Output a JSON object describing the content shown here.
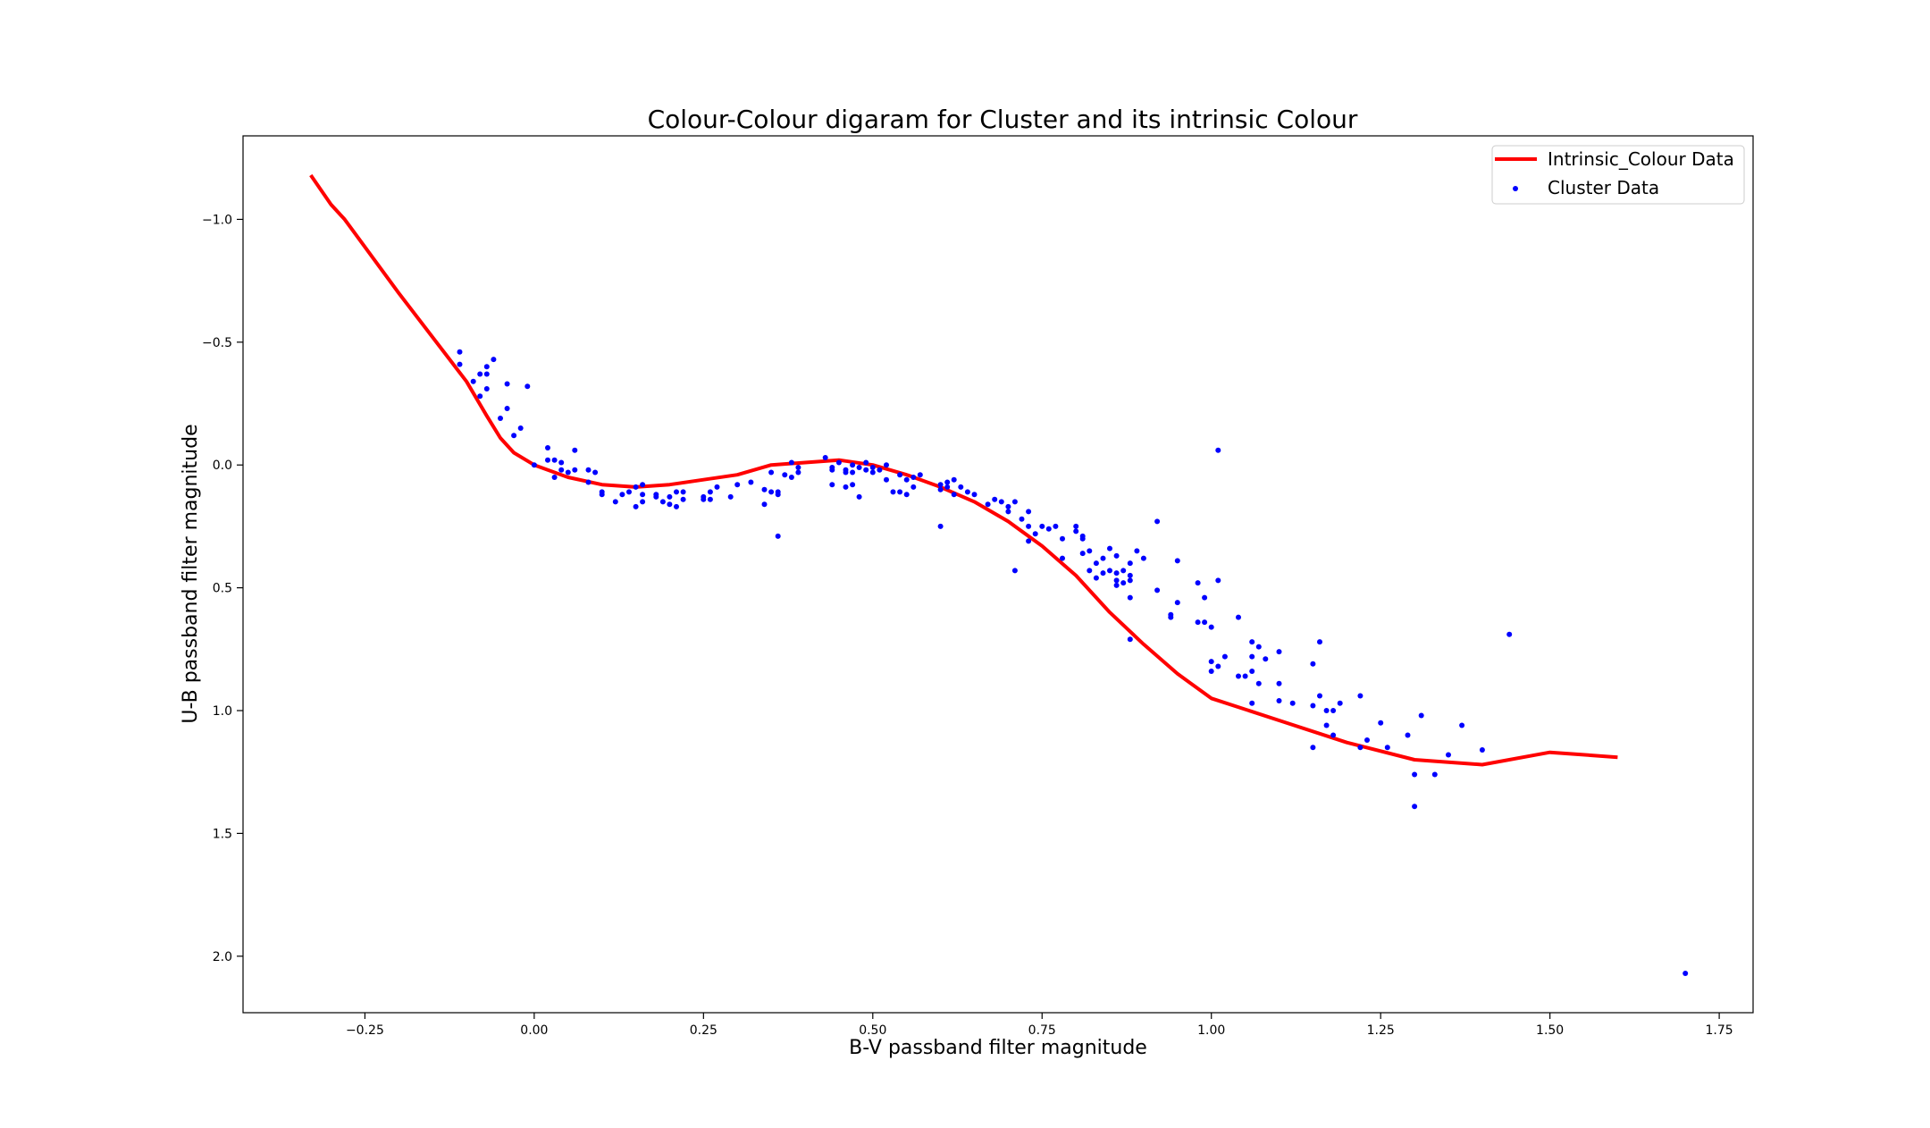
{
  "chart_data": {
    "type": "scatter",
    "title": "Colour-Colour digaram for Cluster and its intrinsic Colour",
    "xlabel": "B-V passband filter magnitude",
    "ylabel": "U-B passband filter magnitude",
    "xlim": [
      -0.43,
      1.8
    ],
    "ylim": [
      2.23,
      -1.34
    ],
    "y_inverted": true,
    "x_ticks": [
      -0.25,
      0.0,
      0.25,
      0.5,
      0.75,
      1.0,
      1.25,
      1.5,
      1.75
    ],
    "x_tick_labels": [
      "−0.25",
      "0.00",
      "0.25",
      "0.50",
      "0.75",
      "1.00",
      "1.25",
      "1.50",
      "1.75"
    ],
    "y_ticks": [
      -1.0,
      -0.5,
      0.0,
      0.5,
      1.0,
      1.5,
      2.0
    ],
    "y_tick_labels": [
      "−1.0",
      "−0.5",
      "0.0",
      "0.5",
      "1.0",
      "1.5",
      "2.0"
    ],
    "grid": false,
    "legend_position": "top-right",
    "series": [
      {
        "name": "Intrinsic_Colour Data",
        "kind": "line",
        "color": "#ff0000",
        "points": [
          [
            -0.33,
            -1.18
          ],
          [
            -0.3,
            -1.06
          ],
          [
            -0.28,
            -1.0
          ],
          [
            -0.2,
            -0.7
          ],
          [
            -0.1,
            -0.34
          ],
          [
            -0.07,
            -0.2
          ],
          [
            -0.05,
            -0.11
          ],
          [
            -0.03,
            -0.05
          ],
          [
            0.0,
            0.0
          ],
          [
            0.05,
            0.05
          ],
          [
            0.1,
            0.08
          ],
          [
            0.15,
            0.09
          ],
          [
            0.2,
            0.08
          ],
          [
            0.25,
            0.06
          ],
          [
            0.3,
            0.04
          ],
          [
            0.35,
            0.0
          ],
          [
            0.4,
            -0.01
          ],
          [
            0.45,
            -0.02
          ],
          [
            0.5,
            0.0
          ],
          [
            0.55,
            0.04
          ],
          [
            0.6,
            0.09
          ],
          [
            0.65,
            0.15
          ],
          [
            0.7,
            0.23
          ],
          [
            0.75,
            0.33
          ],
          [
            0.8,
            0.45
          ],
          [
            0.85,
            0.6
          ],
          [
            0.9,
            0.73
          ],
          [
            0.95,
            0.85
          ],
          [
            1.0,
            0.95
          ],
          [
            1.1,
            1.04
          ],
          [
            1.2,
            1.13
          ],
          [
            1.3,
            1.2
          ],
          [
            1.4,
            1.22
          ],
          [
            1.5,
            1.17
          ],
          [
            1.6,
            1.19
          ]
        ]
      },
      {
        "name": "Cluster Data",
        "kind": "scatter",
        "color": "#0000ff",
        "points": [
          [
            -0.11,
            -0.46
          ],
          [
            -0.11,
            -0.41
          ],
          [
            -0.09,
            -0.34
          ],
          [
            -0.08,
            -0.37
          ],
          [
            -0.08,
            -0.28
          ],
          [
            -0.07,
            -0.4
          ],
          [
            -0.07,
            -0.37
          ],
          [
            -0.07,
            -0.31
          ],
          [
            -0.06,
            -0.43
          ],
          [
            -0.05,
            -0.19
          ],
          [
            -0.04,
            -0.33
          ],
          [
            -0.04,
            -0.23
          ],
          [
            -0.03,
            -0.12
          ],
          [
            -0.02,
            -0.15
          ],
          [
            -0.01,
            -0.32
          ],
          [
            0.0,
            0.0
          ],
          [
            0.02,
            -0.07
          ],
          [
            0.02,
            -0.02
          ],
          [
            0.03,
            -0.02
          ],
          [
            0.03,
            0.05
          ],
          [
            0.04,
            -0.01
          ],
          [
            0.04,
            0.02
          ],
          [
            0.05,
            0.03
          ],
          [
            0.06,
            -0.06
          ],
          [
            0.06,
            0.02
          ],
          [
            0.08,
            0.02
          ],
          [
            0.09,
            0.03
          ],
          [
            0.08,
            0.07
          ],
          [
            0.1,
            0.11
          ],
          [
            0.1,
            0.12
          ],
          [
            0.12,
            0.15
          ],
          [
            0.13,
            0.12
          ],
          [
            0.14,
            0.11
          ],
          [
            0.15,
            0.09
          ],
          [
            0.15,
            0.17
          ],
          [
            0.16,
            0.08
          ],
          [
            0.16,
            0.12
          ],
          [
            0.16,
            0.15
          ],
          [
            0.18,
            0.12
          ],
          [
            0.18,
            0.13
          ],
          [
            0.19,
            0.15
          ],
          [
            0.2,
            0.13
          ],
          [
            0.2,
            0.16
          ],
          [
            0.21,
            0.17
          ],
          [
            0.21,
            0.11
          ],
          [
            0.22,
            0.14
          ],
          [
            0.22,
            0.11
          ],
          [
            0.25,
            0.13
          ],
          [
            0.25,
            0.14
          ],
          [
            0.26,
            0.11
          ],
          [
            0.26,
            0.14
          ],
          [
            0.27,
            0.09
          ],
          [
            0.29,
            0.13
          ],
          [
            0.3,
            0.08
          ],
          [
            0.32,
            0.07
          ],
          [
            0.34,
            0.1
          ],
          [
            0.34,
            0.16
          ],
          [
            0.35,
            0.03
          ],
          [
            0.35,
            0.11
          ],
          [
            0.36,
            0.11
          ],
          [
            0.36,
            0.12
          ],
          [
            0.36,
            0.29
          ],
          [
            0.37,
            0.04
          ],
          [
            0.38,
            -0.01
          ],
          [
            0.38,
            0.05
          ],
          [
            0.39,
            0.01
          ],
          [
            0.39,
            0.03
          ],
          [
            0.43,
            -0.03
          ],
          [
            0.44,
            0.01
          ],
          [
            0.44,
            0.02
          ],
          [
            0.44,
            0.08
          ],
          [
            0.45,
            -0.01
          ],
          [
            0.46,
            0.03
          ],
          [
            0.46,
            0.02
          ],
          [
            0.46,
            0.09
          ],
          [
            0.47,
            0.03
          ],
          [
            0.47,
            0.0
          ],
          [
            0.47,
            0.08
          ],
          [
            0.48,
            0.01
          ],
          [
            0.48,
            0.13
          ],
          [
            0.49,
            0.02
          ],
          [
            0.49,
            -0.01
          ],
          [
            0.5,
            0.01
          ],
          [
            0.5,
            0.03
          ],
          [
            0.51,
            0.02
          ],
          [
            0.52,
            0.0
          ],
          [
            0.52,
            0.06
          ],
          [
            0.53,
            0.11
          ],
          [
            0.54,
            0.04
          ],
          [
            0.54,
            0.11
          ],
          [
            0.55,
            0.12
          ],
          [
            0.55,
            0.06
          ],
          [
            0.56,
            0.05
          ],
          [
            0.56,
            0.09
          ],
          [
            0.57,
            0.04
          ],
          [
            0.6,
            0.1
          ],
          [
            0.6,
            0.08
          ],
          [
            0.61,
            0.09
          ],
          [
            0.61,
            0.07
          ],
          [
            0.62,
            0.06
          ],
          [
            0.62,
            0.12
          ],
          [
            0.63,
            0.09
          ],
          [
            0.64,
            0.11
          ],
          [
            0.65,
            0.12
          ],
          [
            0.6,
            0.25
          ],
          [
            0.67,
            0.16
          ],
          [
            0.68,
            0.14
          ],
          [
            0.69,
            0.15
          ],
          [
            0.7,
            0.17
          ],
          [
            0.7,
            0.19
          ],
          [
            0.71,
            0.15
          ],
          [
            0.71,
            0.43
          ],
          [
            0.72,
            0.22
          ],
          [
            0.73,
            0.19
          ],
          [
            0.73,
            0.25
          ],
          [
            0.73,
            0.31
          ],
          [
            0.74,
            0.28
          ],
          [
            0.75,
            0.25
          ],
          [
            0.76,
            0.26
          ],
          [
            0.77,
            0.25
          ],
          [
            0.78,
            0.3
          ],
          [
            0.78,
            0.38
          ],
          [
            0.8,
            0.25
          ],
          [
            0.8,
            0.27
          ],
          [
            0.81,
            0.29
          ],
          [
            0.81,
            0.3
          ],
          [
            0.81,
            0.36
          ],
          [
            0.82,
            0.35
          ],
          [
            0.82,
            0.43
          ],
          [
            0.83,
            0.46
          ],
          [
            0.83,
            0.4
          ],
          [
            0.84,
            0.38
          ],
          [
            0.84,
            0.44
          ],
          [
            0.85,
            0.34
          ],
          [
            0.85,
            0.43
          ],
          [
            0.86,
            0.37
          ],
          [
            0.86,
            0.44
          ],
          [
            0.86,
            0.47
          ],
          [
            0.86,
            0.49
          ],
          [
            0.87,
            0.43
          ],
          [
            0.87,
            0.48
          ],
          [
            0.88,
            0.4
          ],
          [
            0.88,
            0.45
          ],
          [
            0.88,
            0.47
          ],
          [
            0.88,
            0.54
          ],
          [
            0.88,
            0.71
          ],
          [
            0.89,
            0.35
          ],
          [
            0.9,
            0.38
          ],
          [
            0.92,
            0.23
          ],
          [
            0.92,
            0.51
          ],
          [
            0.94,
            0.61
          ],
          [
            0.94,
            0.62
          ],
          [
            0.95,
            0.39
          ],
          [
            0.95,
            0.56
          ],
          [
            0.98,
            0.48
          ],
          [
            0.98,
            0.64
          ],
          [
            0.99,
            0.54
          ],
          [
            0.99,
            0.64
          ],
          [
            1.0,
            0.66
          ],
          [
            1.0,
            0.8
          ],
          [
            1.0,
            0.84
          ],
          [
            1.01,
            -0.06
          ],
          [
            1.01,
            0.47
          ],
          [
            1.01,
            0.82
          ],
          [
            1.02,
            0.78
          ],
          [
            1.04,
            0.62
          ],
          [
            1.04,
            0.86
          ],
          [
            1.05,
            0.86
          ],
          [
            1.06,
            0.72
          ],
          [
            1.06,
            0.78
          ],
          [
            1.06,
            0.84
          ],
          [
            1.06,
            0.97
          ],
          [
            1.07,
            0.74
          ],
          [
            1.07,
            0.89
          ],
          [
            1.08,
            0.79
          ],
          [
            1.1,
            0.76
          ],
          [
            1.1,
            0.89
          ],
          [
            1.1,
            0.96
          ],
          [
            1.12,
            0.97
          ],
          [
            1.15,
            0.81
          ],
          [
            1.15,
            0.98
          ],
          [
            1.15,
            1.15
          ],
          [
            1.16,
            0.72
          ],
          [
            1.16,
            0.94
          ],
          [
            1.17,
            1.0
          ],
          [
            1.17,
            1.06
          ],
          [
            1.18,
            1.0
          ],
          [
            1.18,
            1.1
          ],
          [
            1.19,
            0.97
          ],
          [
            1.22,
            0.94
          ],
          [
            1.22,
            1.15
          ],
          [
            1.23,
            1.12
          ],
          [
            1.25,
            1.05
          ],
          [
            1.26,
            1.15
          ],
          [
            1.29,
            1.1
          ],
          [
            1.3,
            1.26
          ],
          [
            1.3,
            1.39
          ],
          [
            1.31,
            1.02
          ],
          [
            1.33,
            1.26
          ],
          [
            1.35,
            1.18
          ],
          [
            1.37,
            1.06
          ],
          [
            1.4,
            1.16
          ],
          [
            1.44,
            0.69
          ],
          [
            1.7,
            2.07
          ]
        ]
      }
    ]
  }
}
